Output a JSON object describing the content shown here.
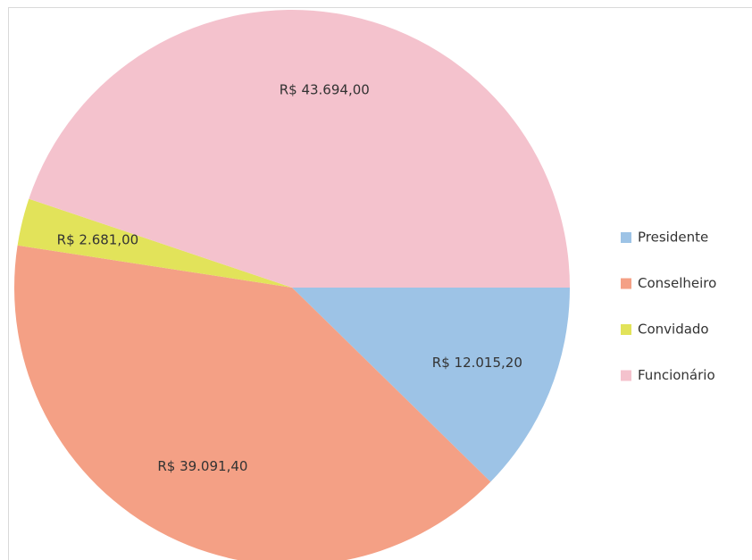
{
  "chart_data": {
    "type": "pie",
    "categories": [
      "Presidente",
      "Conselheiro",
      "Convidado",
      "Funcionário"
    ],
    "values": [
      12015.2,
      39091.4,
      2681.0,
      43694.0
    ],
    "value_labels": [
      "R$ 12.015,20",
      "R$ 39.091,40",
      "R$ 2.681,00",
      "R$ 43.694,00"
    ],
    "colors": [
      "#9dc3e6",
      "#f4a085",
      "#e2e35a",
      "#f4c2cd"
    ],
    "legend": "right"
  }
}
